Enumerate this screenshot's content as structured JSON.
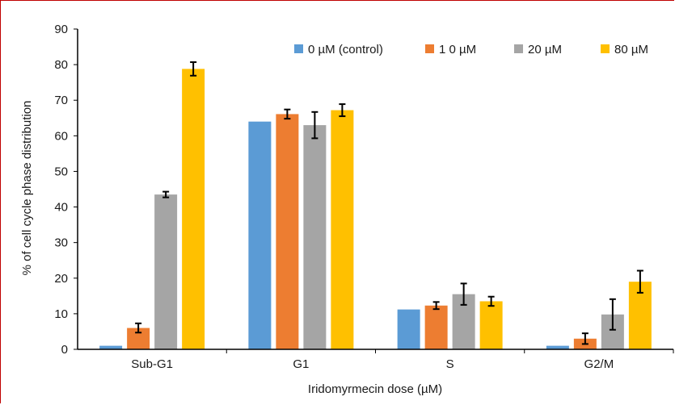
{
  "chart_data": {
    "type": "bar",
    "categories": [
      "Sub-G1",
      "G1",
      "S",
      "G2/M"
    ],
    "series": [
      {
        "name": "0 µM (control)",
        "color": "#5b9bd5",
        "values": [
          1.0,
          64.0,
          11.2,
          1.0
        ],
        "errors": [
          0,
          0,
          0,
          0
        ]
      },
      {
        "name": "1 0 µM",
        "color": "#ed7d31",
        "values": [
          6.0,
          66.1,
          12.3,
          3.0
        ],
        "errors": [
          1.3,
          1.3,
          1.0,
          1.5
        ]
      },
      {
        "name": "20 µM",
        "color": "#a5a5a5",
        "values": [
          43.5,
          63.0,
          15.5,
          9.8
        ],
        "errors": [
          0.8,
          3.7,
          3.0,
          4.3
        ]
      },
      {
        "name": "80 µM",
        "color": "#ffc000",
        "values": [
          78.8,
          67.2,
          13.5,
          19.0
        ],
        "errors": [
          1.9,
          1.7,
          1.3,
          3.1
        ]
      }
    ],
    "title": "",
    "xlabel": "Iridomyrmecin dose (µM)",
    "ylabel": "% of cell cycle phase distribution",
    "ylim": [
      0,
      90
    ],
    "yticks": [
      "0",
      "10",
      "20",
      "30",
      "40",
      "50",
      "60",
      "70",
      "80",
      "90"
    ],
    "grid": false,
    "legend_position": "top-right"
  }
}
